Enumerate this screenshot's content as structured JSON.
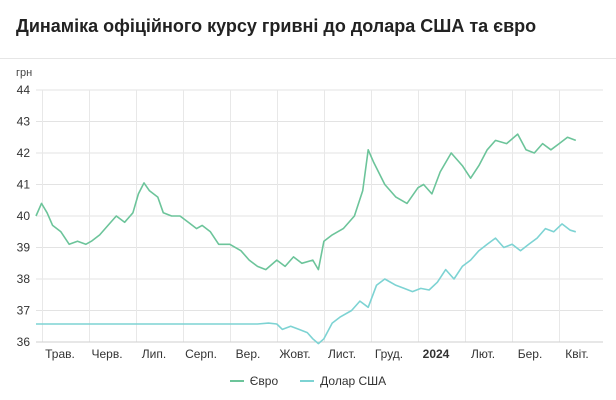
{
  "title": "Динаміка офіційного курсу гривні до долара США та євро",
  "chart_data": {
    "type": "line",
    "unit_label": "грн",
    "ylim": [
      36,
      44
    ],
    "y_ticks": [
      "44",
      "43",
      "42",
      "41",
      "40",
      "39",
      "38",
      "37",
      "36"
    ],
    "x_labels": [
      {
        "label": "Трав.",
        "bold": false
      },
      {
        "label": "Черв.",
        "bold": false
      },
      {
        "label": "Лип.",
        "bold": false
      },
      {
        "label": "Серп.",
        "bold": false
      },
      {
        "label": "Вер.",
        "bold": false
      },
      {
        "label": "Жовт.",
        "bold": false
      },
      {
        "label": "Лист.",
        "bold": false
      },
      {
        "label": "Груд.",
        "bold": false
      },
      {
        "label": "2024",
        "bold": true
      },
      {
        "label": "Лют.",
        "bold": false
      },
      {
        "label": "Бер.",
        "bold": false
      },
      {
        "label": "Квіт.",
        "bold": false
      }
    ],
    "grid": true,
    "legend_position": "bottom",
    "series": [
      {
        "name": "Євро",
        "color": "#6cc49a",
        "points": [
          [
            0,
            40.0
          ],
          [
            0.1,
            40.4
          ],
          [
            0.2,
            40.1
          ],
          [
            0.3,
            39.7
          ],
          [
            0.45,
            39.5
          ],
          [
            0.6,
            39.1
          ],
          [
            0.75,
            39.2
          ],
          [
            0.9,
            39.1
          ],
          [
            1.0,
            39.2
          ],
          [
            1.15,
            39.4
          ],
          [
            1.3,
            39.7
          ],
          [
            1.45,
            40.0
          ],
          [
            1.6,
            39.8
          ],
          [
            1.75,
            40.1
          ],
          [
            1.85,
            40.7
          ],
          [
            1.95,
            41.05
          ],
          [
            2.05,
            40.8
          ],
          [
            2.2,
            40.6
          ],
          [
            2.3,
            40.1
          ],
          [
            2.45,
            40.0
          ],
          [
            2.6,
            40.0
          ],
          [
            2.75,
            39.8
          ],
          [
            2.9,
            39.6
          ],
          [
            3.0,
            39.7
          ],
          [
            3.15,
            39.5
          ],
          [
            3.3,
            39.1
          ],
          [
            3.5,
            39.1
          ],
          [
            3.7,
            38.9
          ],
          [
            3.85,
            38.6
          ],
          [
            4.0,
            38.4
          ],
          [
            4.15,
            38.3
          ],
          [
            4.35,
            38.6
          ],
          [
            4.5,
            38.4
          ],
          [
            4.65,
            38.7
          ],
          [
            4.8,
            38.5
          ],
          [
            5.0,
            38.6
          ],
          [
            5.1,
            38.3
          ],
          [
            5.2,
            39.2
          ],
          [
            5.35,
            39.4
          ],
          [
            5.55,
            39.6
          ],
          [
            5.75,
            40.0
          ],
          [
            5.9,
            40.8
          ],
          [
            6.0,
            42.1
          ],
          [
            6.1,
            41.7
          ],
          [
            6.3,
            41.0
          ],
          [
            6.5,
            40.6
          ],
          [
            6.7,
            40.4
          ],
          [
            6.9,
            40.9
          ],
          [
            7.0,
            41.0
          ],
          [
            7.15,
            40.7
          ],
          [
            7.3,
            41.4
          ],
          [
            7.5,
            42.0
          ],
          [
            7.7,
            41.6
          ],
          [
            7.85,
            41.2
          ],
          [
            8.0,
            41.6
          ],
          [
            8.15,
            42.1
          ],
          [
            8.3,
            42.4
          ],
          [
            8.5,
            42.3
          ],
          [
            8.7,
            42.6
          ],
          [
            8.85,
            42.1
          ],
          [
            9.0,
            42.0
          ],
          [
            9.15,
            42.3
          ],
          [
            9.3,
            42.1
          ],
          [
            9.45,
            42.3
          ],
          [
            9.6,
            42.5
          ],
          [
            9.75,
            42.4
          ]
        ]
      },
      {
        "name": "Долар США",
        "color": "#7dd3d3",
        "points": [
          [
            0,
            36.57
          ],
          [
            0.5,
            36.57
          ],
          [
            1.0,
            36.57
          ],
          [
            1.5,
            36.57
          ],
          [
            2.0,
            36.57
          ],
          [
            2.5,
            36.57
          ],
          [
            3.0,
            36.57
          ],
          [
            3.5,
            36.57
          ],
          [
            4.0,
            36.57
          ],
          [
            4.2,
            36.6
          ],
          [
            4.35,
            36.57
          ],
          [
            4.45,
            36.4
          ],
          [
            4.6,
            36.5
          ],
          [
            4.75,
            36.4
          ],
          [
            4.9,
            36.3
          ],
          [
            5.0,
            36.1
          ],
          [
            5.1,
            35.95
          ],
          [
            5.2,
            36.1
          ],
          [
            5.35,
            36.6
          ],
          [
            5.5,
            36.8
          ],
          [
            5.7,
            37.0
          ],
          [
            5.85,
            37.3
          ],
          [
            6.0,
            37.1
          ],
          [
            6.15,
            37.8
          ],
          [
            6.3,
            38.0
          ],
          [
            6.5,
            37.8
          ],
          [
            6.65,
            37.7
          ],
          [
            6.8,
            37.6
          ],
          [
            6.95,
            37.7
          ],
          [
            7.1,
            37.65
          ],
          [
            7.25,
            37.9
          ],
          [
            7.4,
            38.3
          ],
          [
            7.55,
            38.0
          ],
          [
            7.7,
            38.4
          ],
          [
            7.85,
            38.6
          ],
          [
            8.0,
            38.9
          ],
          [
            8.15,
            39.1
          ],
          [
            8.3,
            39.3
          ],
          [
            8.45,
            39.0
          ],
          [
            8.6,
            39.1
          ],
          [
            8.75,
            38.9
          ],
          [
            8.9,
            39.1
          ],
          [
            9.05,
            39.3
          ],
          [
            9.2,
            39.6
          ],
          [
            9.35,
            39.5
          ],
          [
            9.5,
            39.75
          ],
          [
            9.65,
            39.55
          ],
          [
            9.75,
            39.5
          ]
        ]
      }
    ]
  }
}
